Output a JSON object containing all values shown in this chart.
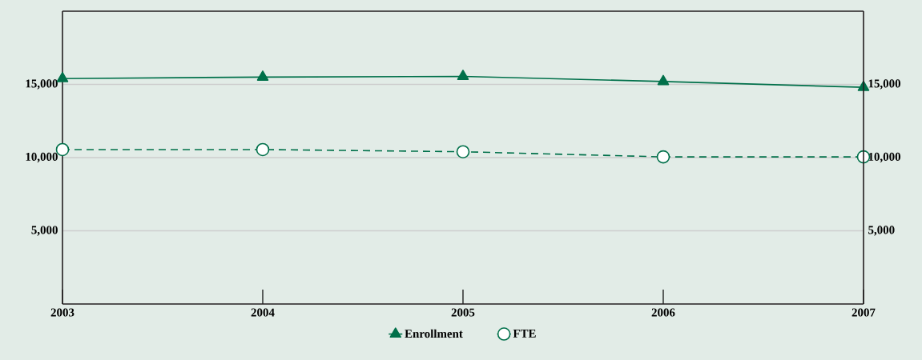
{
  "chart_data": {
    "type": "line",
    "categories": [
      "2003",
      "2004",
      "2005",
      "2006",
      "2007"
    ],
    "series": [
      {
        "name": "Enrollment",
        "color": "#00704a",
        "values": [
          15400,
          15500,
          15550,
          15200,
          14800
        ],
        "marker": "triangle",
        "line_style": "solid"
      },
      {
        "name": "FTE",
        "color": "#00704a",
        "values": [
          10550,
          10550,
          10400,
          10050,
          10050
        ],
        "marker": "circle",
        "line_style": "dashed"
      }
    ],
    "ylim": [
      0,
      20000
    ],
    "yticks": [
      {
        "value": 5000,
        "label": "5,000"
      },
      {
        "value": 10000,
        "label": "10,000"
      },
      {
        "value": 15000,
        "label": "15,000"
      }
    ],
    "y2lim": [
      0,
      20000
    ],
    "y2ticks": [
      {
        "value": 5000,
        "label": "5,000"
      },
      {
        "value": 10000,
        "label": "10,000"
      },
      {
        "value": 15000,
        "label": "15,000"
      }
    ],
    "grid": "y",
    "legend": "bottom"
  }
}
